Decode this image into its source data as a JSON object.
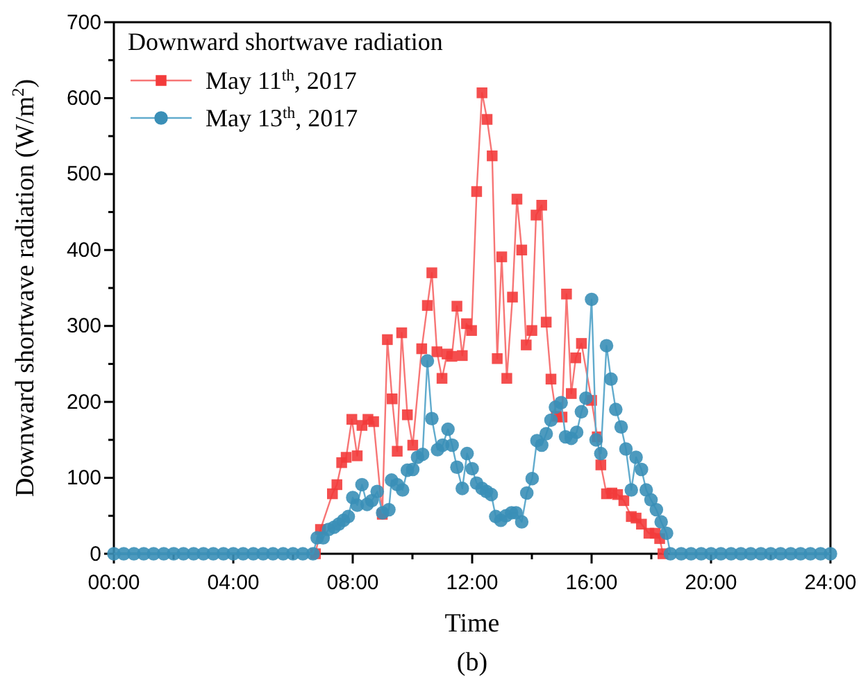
{
  "chart_data": {
    "type": "line",
    "xlabel": "Time",
    "ylabel": "Downward shortwave radiation (W/m$^{2}$)",
    "legend_title": "Downward shortwave radiation",
    "annotations": [
      "(b)"
    ],
    "xlim": [
      0,
      24
    ],
    "xticks": [
      {
        "value": 0,
        "label": "00:00"
      },
      {
        "value": 2,
        "label": null
      },
      {
        "value": 4,
        "label": "04:00"
      },
      {
        "value": 6,
        "label": null
      },
      {
        "value": 8,
        "label": "08:00"
      },
      {
        "value": 10,
        "label": null
      },
      {
        "value": 12,
        "label": "12:00"
      },
      {
        "value": 14,
        "label": null
      },
      {
        "value": 16,
        "label": "16:00"
      },
      {
        "value": 18,
        "label": null
      },
      {
        "value": 20,
        "label": "20:00"
      },
      {
        "value": 22,
        "label": null
      },
      {
        "value": 24,
        "label": "24:00"
      }
    ],
    "ylim": [
      0,
      700
    ],
    "yticks": [
      0,
      {
        "value": 50,
        "label": null
      },
      100,
      {
        "value": 150,
        "label": null
      },
      200,
      {
        "value": 250,
        "label": null
      },
      300,
      {
        "value": 350,
        "label": null
      },
      400,
      {
        "value": 450,
        "label": null
      },
      500,
      {
        "value": 550,
        "label": null
      },
      600,
      {
        "value": 650,
        "label": null
      },
      700
    ],
    "grid": false,
    "legend": "top left",
    "line_style": "solid",
    "series": [
      {
        "name": "May 11$^{th}$, 2017",
        "color": "#f33b3b",
        "marker": "square",
        "x": [
          6.75,
          6.92,
          7.32,
          7.47,
          7.63,
          7.78,
          7.97,
          8.15,
          8.31,
          8.51,
          8.7,
          8.99,
          9.16,
          9.32,
          9.49,
          9.64,
          9.83,
          10.01,
          10.31,
          10.5,
          10.65,
          10.82,
          10.99,
          11.16,
          11.32,
          11.49,
          11.67,
          11.81,
          11.98,
          12.15,
          12.33,
          12.5,
          12.67,
          12.84,
          12.99,
          13.16,
          13.35,
          13.5,
          13.66,
          13.81,
          14.0,
          14.14,
          14.33,
          14.48,
          14.64,
          14.82,
          15.01,
          15.16,
          15.32,
          15.47,
          15.66,
          16.0,
          16.19,
          16.31,
          16.5,
          16.68,
          16.87,
          17.08,
          17.33,
          17.49,
          17.67,
          17.92,
          18.13,
          18.28,
          18.39
        ],
        "values": [
          0,
          32,
          79,
          91,
          120,
          127,
          177,
          129,
          169,
          177,
          174,
          52,
          282,
          204,
          135,
          291,
          183,
          143,
          270,
          327,
          370,
          266,
          231,
          263,
          260,
          326,
          261,
          303,
          294,
          477,
          607,
          572,
          524,
          257,
          391,
          231,
          338,
          467,
          400,
          275,
          294,
          446,
          459,
          305,
          230,
          181,
          180,
          342,
          211,
          258,
          277,
          202,
          154,
          117,
          79,
          80,
          78,
          70,
          49,
          47,
          39,
          27,
          27,
          20,
          0
        ]
      },
      {
        "name": "May 13$^{th}$, 2017",
        "color": "#3a8fb7",
        "marker": "circle",
        "x": [
          0,
          0.33,
          0.67,
          1,
          1.33,
          1.67,
          2,
          2.33,
          2.67,
          3,
          3.33,
          3.67,
          4,
          4.33,
          4.67,
          5,
          5.33,
          5.67,
          6,
          6.33,
          6.67,
          6.81,
          7.01,
          7.19,
          7.38,
          7.53,
          7.69,
          7.85,
          8.0,
          8.15,
          8.31,
          8.48,
          8.64,
          8.82,
          9.0,
          9.21,
          9.3,
          9.49,
          9.67,
          9.83,
          10.01,
          10.17,
          10.34,
          10.5,
          10.65,
          10.84,
          11.01,
          11.19,
          11.33,
          11.49,
          11.67,
          11.83,
          12.0,
          12.15,
          12.33,
          12.48,
          12.64,
          12.79,
          12.96,
          13.13,
          13.32,
          13.47,
          13.66,
          13.83,
          14.01,
          14.17,
          14.33,
          14.48,
          14.64,
          14.79,
          14.98,
          15.13,
          15.32,
          15.5,
          15.66,
          15.81,
          16.0,
          16.15,
          16.31,
          16.5,
          16.65,
          16.81,
          16.99,
          17.15,
          17.33,
          17.49,
          17.67,
          17.83,
          17.99,
          18.17,
          18.33,
          18.51,
          18.64,
          19,
          19.33,
          19.67,
          20,
          20.33,
          20.67,
          21,
          21.33,
          21.67,
          22,
          22.33,
          22.67,
          23,
          23.33,
          23.67,
          24
        ],
        "values": [
          0,
          0,
          0,
          0,
          0,
          0,
          0,
          0,
          0,
          0,
          0,
          0,
          0,
          0,
          0,
          0,
          0,
          0,
          0,
          0,
          0,
          21,
          21,
          32,
          35,
          39,
          44,
          49,
          74,
          64,
          91,
          65,
          70,
          82,
          54,
          58,
          97,
          91,
          84,
          110,
          111,
          127,
          131,
          254,
          178,
          137,
          143,
          164,
          143,
          114,
          86,
          132,
          112,
          93,
          86,
          82,
          78,
          49,
          44,
          50,
          54,
          54,
          42,
          80,
          99,
          149,
          143,
          158,
          176,
          193,
          199,
          154,
          152,
          160,
          187,
          205,
          335,
          150,
          132,
          274,
          230,
          190,
          167,
          138,
          84,
          127,
          111,
          84,
          71,
          58,
          42,
          27,
          0,
          0,
          0,
          0,
          0,
          0,
          0,
          0,
          0,
          0,
          0,
          0,
          0,
          0,
          0,
          0,
          0
        ]
      }
    ]
  }
}
